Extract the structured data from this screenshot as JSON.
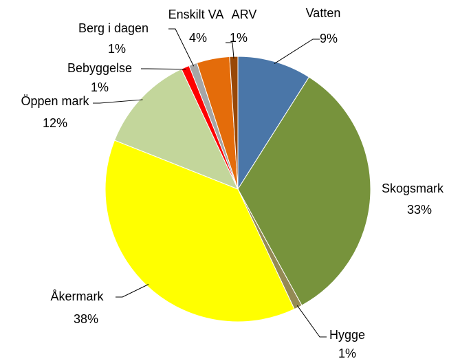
{
  "chart_data": {
    "type": "pie",
    "categories": [
      "Vatten",
      "Skogsmark",
      "Hygge",
      "Åkermark",
      "Öppen mark",
      "Bebyggelse",
      "Berg i dagen",
      "Enskilt VA",
      "ARV"
    ],
    "values": [
      9,
      33,
      1,
      38,
      12,
      1,
      1,
      4,
      1
    ],
    "value_labels": [
      "9%",
      "33%",
      "1%",
      "38%",
      "12%",
      "1%",
      "1%",
      "4%",
      "1%"
    ],
    "colors": [
      "#4a76a8",
      "#77933c",
      "#948a54",
      "#ffff00",
      "#c3d69b",
      "#ff0000",
      "#a6a6a6",
      "#e46c0a",
      "#984807"
    ]
  }
}
